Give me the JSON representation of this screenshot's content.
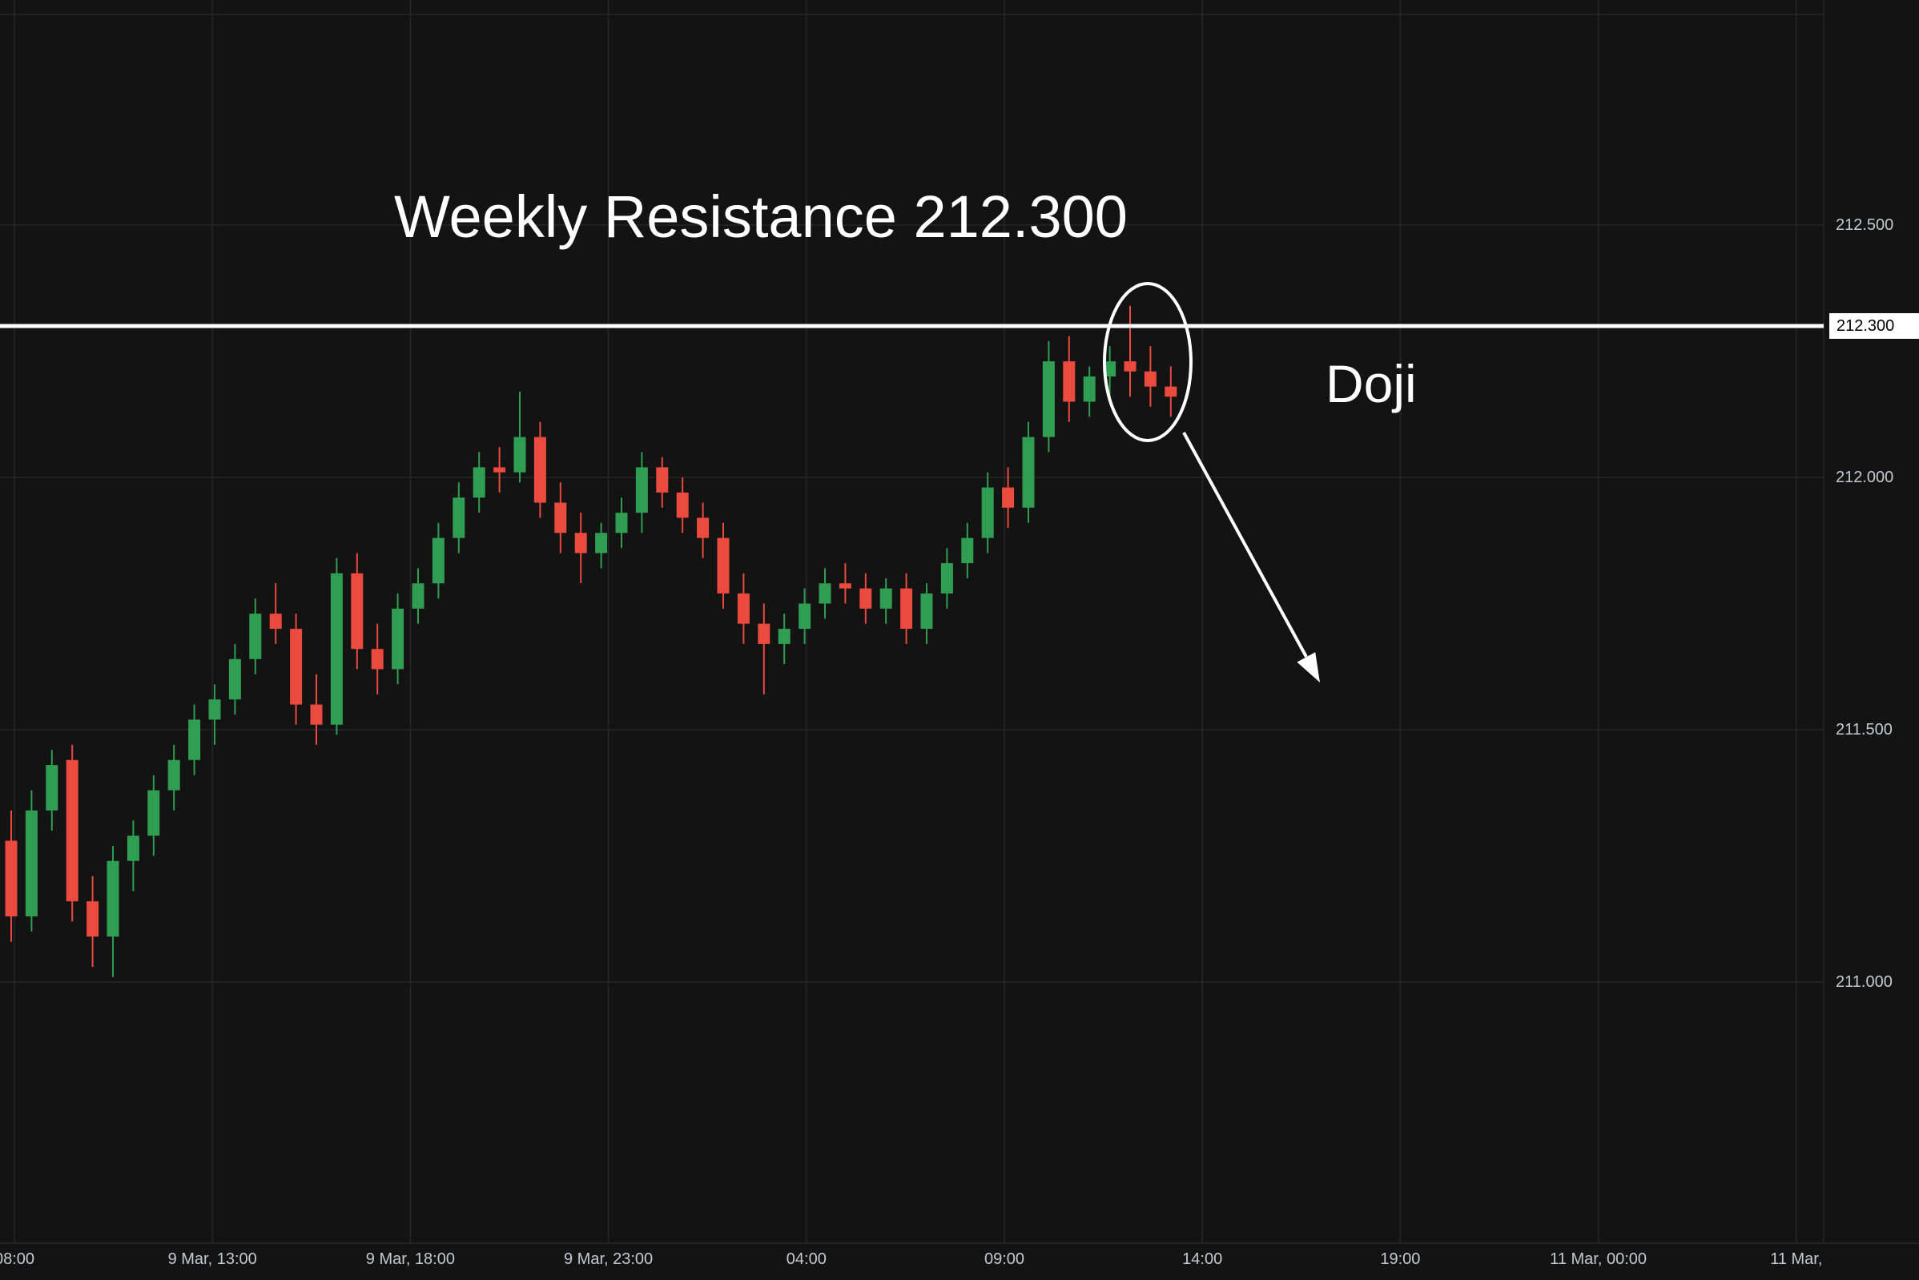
{
  "chart_data": {
    "type": "candlestick",
    "annotations": {
      "resistance_text": "Weekly Resistance 212.300",
      "doji_text": "Doji",
      "resistance_price": 212.3,
      "resistance_price_label": "212.300",
      "highlight": "ellipse around doji candles at resistance with arrow pointing down-right"
    },
    "y_axis": {
      "side": "right",
      "range": [
        210.48,
        212.95
      ],
      "labels": [
        {
          "price": 212.5,
          "text": "212.500"
        },
        {
          "price": 212.0,
          "text": "212.000"
        },
        {
          "price": 211.5,
          "text": "211.500"
        },
        {
          "price": 211.0,
          "text": "211.000"
        }
      ]
    },
    "x_axis": {
      "labels": [
        "08:00",
        "9 Mar, 13:00",
        "9 Mar, 18:00",
        "9 Mar, 23:00",
        "04:00",
        "09:00",
        "14:00",
        "19:00",
        "11 Mar, 00:00",
        "11 Mar,"
      ]
    },
    "candles": [
      [
        211.28,
        211.34,
        211.08,
        211.13
      ],
      [
        211.13,
        211.38,
        211.1,
        211.34
      ],
      [
        211.34,
        211.46,
        211.3,
        211.43
      ],
      [
        211.44,
        211.47,
        211.12,
        211.16
      ],
      [
        211.16,
        211.21,
        211.03,
        211.09
      ],
      [
        211.09,
        211.27,
        211.01,
        211.24
      ],
      [
        211.24,
        211.32,
        211.18,
        211.29
      ],
      [
        211.29,
        211.41,
        211.25,
        211.38
      ],
      [
        211.38,
        211.47,
        211.34,
        211.44
      ],
      [
        211.44,
        211.55,
        211.41,
        211.52
      ],
      [
        211.52,
        211.59,
        211.47,
        211.56
      ],
      [
        211.56,
        211.67,
        211.53,
        211.64
      ],
      [
        211.64,
        211.76,
        211.61,
        211.73
      ],
      [
        211.73,
        211.79,
        211.67,
        211.7
      ],
      [
        211.7,
        211.73,
        211.51,
        211.55
      ],
      [
        211.55,
        211.61,
        211.47,
        211.51
      ],
      [
        211.51,
        211.84,
        211.49,
        211.81
      ],
      [
        211.81,
        211.85,
        211.62,
        211.66
      ],
      [
        211.66,
        211.71,
        211.57,
        211.62
      ],
      [
        211.62,
        211.77,
        211.59,
        211.74
      ],
      [
        211.74,
        211.82,
        211.71,
        211.79
      ],
      [
        211.79,
        211.91,
        211.76,
        211.88
      ],
      [
        211.88,
        211.99,
        211.85,
        211.96
      ],
      [
        211.96,
        212.05,
        211.93,
        212.02
      ],
      [
        212.02,
        212.06,
        211.97,
        212.01
      ],
      [
        212.01,
        212.17,
        211.99,
        212.08
      ],
      [
        212.08,
        212.11,
        211.92,
        211.95
      ],
      [
        211.95,
        211.99,
        211.85,
        211.89
      ],
      [
        211.89,
        211.93,
        211.79,
        211.85
      ],
      [
        211.85,
        211.91,
        211.82,
        211.89
      ],
      [
        211.89,
        211.96,
        211.86,
        211.93
      ],
      [
        211.93,
        212.05,
        211.89,
        212.02
      ],
      [
        212.02,
        212.04,
        211.94,
        211.97
      ],
      [
        211.97,
        212.0,
        211.89,
        211.92
      ],
      [
        211.92,
        211.95,
        211.84,
        211.88
      ],
      [
        211.88,
        211.91,
        211.74,
        211.77
      ],
      [
        211.77,
        211.81,
        211.67,
        211.71
      ],
      [
        211.71,
        211.75,
        211.57,
        211.67
      ],
      [
        211.67,
        211.73,
        211.63,
        211.7
      ],
      [
        211.7,
        211.78,
        211.67,
        211.75
      ],
      [
        211.75,
        211.82,
        211.72,
        211.79
      ],
      [
        211.79,
        211.83,
        211.75,
        211.78
      ],
      [
        211.78,
        211.81,
        211.71,
        211.74
      ],
      [
        211.74,
        211.8,
        211.71,
        211.78
      ],
      [
        211.78,
        211.81,
        211.67,
        211.7
      ],
      [
        211.7,
        211.79,
        211.67,
        211.77
      ],
      [
        211.77,
        211.86,
        211.74,
        211.83
      ],
      [
        211.83,
        211.91,
        211.8,
        211.88
      ],
      [
        211.88,
        212.01,
        211.85,
        211.98
      ],
      [
        211.98,
        212.02,
        211.9,
        211.94
      ],
      [
        211.94,
        212.11,
        211.91,
        212.08
      ],
      [
        212.08,
        212.27,
        212.05,
        212.23
      ],
      [
        212.23,
        212.28,
        212.11,
        212.15
      ],
      [
        212.15,
        212.22,
        212.12,
        212.2
      ],
      [
        212.2,
        212.26,
        212.16,
        212.23
      ],
      [
        212.23,
        212.34,
        212.16,
        212.21
      ],
      [
        212.21,
        212.26,
        212.14,
        212.18
      ],
      [
        212.18,
        212.22,
        212.12,
        212.16
      ]
    ],
    "colors": {
      "up": "#2f9e52",
      "down": "#eb4a3f",
      "background": "#131313",
      "grid": "#262626",
      "annotation": "#ffffff",
      "resistance_line": "#ffffff",
      "axis_text": "#c6c9ce",
      "tag_background": "#ffffff",
      "tag_text": "#000000"
    }
  }
}
